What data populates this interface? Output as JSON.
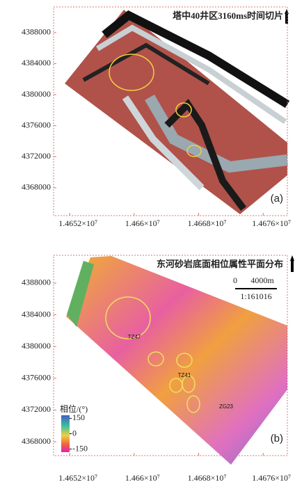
{
  "chart_data": [
    {
      "type": "heatmap",
      "title": "塔中40井区3160ms时间切片",
      "panel_label": "(a)",
      "xlim": [
        14650000,
        14679000
      ],
      "ylim": [
        4364400,
        4391300
      ],
      "xticks": [
        {
          "value": 14652000,
          "label": "1.4652×10⁷"
        },
        {
          "value": 14660000,
          "label": "1.466×10⁷"
        },
        {
          "value": 14668000,
          "label": "1.4668×10⁷"
        },
        {
          "value": 14676000,
          "label": "1.4676×10⁷"
        }
      ],
      "yticks": [
        4368000,
        4372000,
        4376000,
        4380000,
        4384000,
        4388000
      ]
    },
    {
      "type": "heatmap",
      "title": "东河砂岩底面相位属性平面分布",
      "panel_label": "(b)",
      "xlim": [
        14650000,
        14679000
      ],
      "ylim": [
        4366250,
        4391500
      ],
      "xticks": [
        {
          "value": 14652000,
          "label": "1.4652×10⁷"
        },
        {
          "value": 14660000,
          "label": "1.466×10⁷"
        },
        {
          "value": 14668000,
          "label": "1.4668×10⁷"
        },
        {
          "value": 14676000,
          "label": "1.4676×10⁷"
        }
      ],
      "yticks": [
        4368000,
        4372000,
        4376000,
        4380000,
        4384000,
        4388000
      ],
      "annotations": [
        "TZ47",
        "TZ41",
        "ZG23"
      ],
      "scale_bar": {
        "zero": "0",
        "length": "4000m",
        "ratio": "1:161016"
      },
      "colorbar": {
        "label": "相位/(°)",
        "lim": [
          -180,
          180
        ],
        "ticks": [
          150,
          0,
          -150
        ]
      }
    }
  ]
}
